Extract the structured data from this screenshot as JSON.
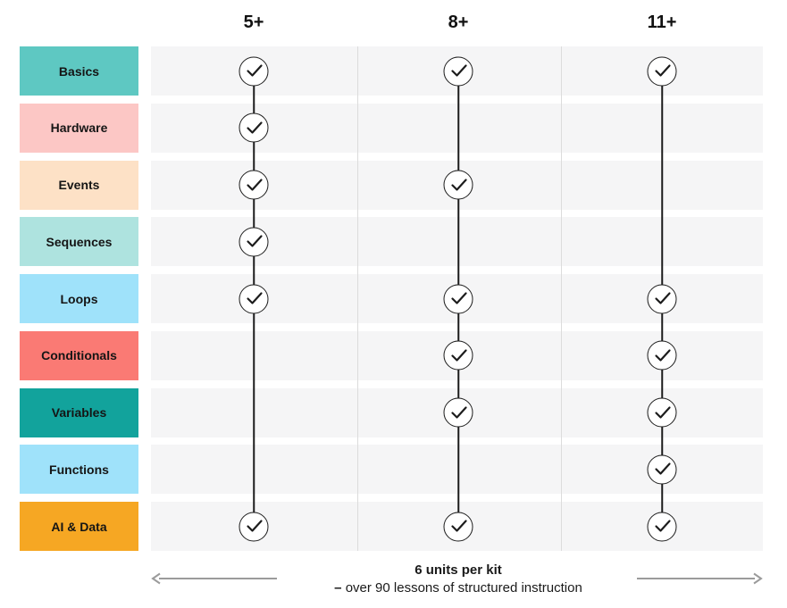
{
  "columns": [
    {
      "label": "5+"
    },
    {
      "label": "8+"
    },
    {
      "label": "11+"
    }
  ],
  "rows": [
    {
      "label": "Basics",
      "color": "#5ec8c2",
      "checks": [
        true,
        true,
        true
      ]
    },
    {
      "label": "Hardware",
      "color": "#fcc7c5",
      "checks": [
        true,
        false,
        false
      ]
    },
    {
      "label": "Events",
      "color": "#fde1c6",
      "checks": [
        true,
        true,
        false
      ]
    },
    {
      "label": "Sequences",
      "color": "#aee3df",
      "checks": [
        true,
        false,
        false
      ]
    },
    {
      "label": "Loops",
      "color": "#9fe2fa",
      "checks": [
        true,
        true,
        true
      ]
    },
    {
      "label": "Conditionals",
      "color": "#fa7a74",
      "checks": [
        false,
        true,
        true
      ]
    },
    {
      "label": "Variables",
      "color": "#12a39c",
      "checks": [
        false,
        true,
        true
      ]
    },
    {
      "label": "Functions",
      "color": "#9fe2fa",
      "checks": [
        false,
        false,
        true
      ]
    },
    {
      "label": "AI & Data",
      "color": "#f6a723",
      "checks": [
        true,
        true,
        true
      ]
    }
  ],
  "footer": {
    "line1": "6 units per kit",
    "line2_dash": "–",
    "line2_text": " over 90 lessons of structured instruction"
  },
  "icons": {
    "check": "check-icon",
    "arrow_left": "arrow-left-icon",
    "arrow_right": "arrow-right-icon"
  },
  "colors": {
    "row_band": "#f5f5f6",
    "separator": "#dcdcdc",
    "connector": "#1c1c1c",
    "circle_border": "#1c1c1c",
    "arrow": "#9b9b9b"
  }
}
